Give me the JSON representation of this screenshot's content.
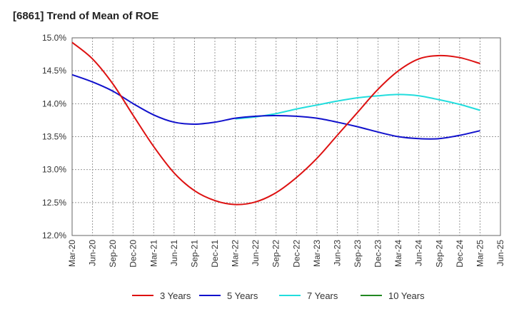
{
  "chart_data": {
    "type": "line",
    "title": "[6861]  Trend of Mean of ROE",
    "xlabel": "",
    "ylabel": "",
    "x_ticks": [
      "Mar-20",
      "Jun-20",
      "Sep-20",
      "Dec-20",
      "Mar-21",
      "Jun-21",
      "Sep-21",
      "Dec-21",
      "Mar-22",
      "Jun-22",
      "Sep-22",
      "Dec-22",
      "Mar-23",
      "Jun-23",
      "Sep-23",
      "Dec-23",
      "Mar-24",
      "Jun-24",
      "Sep-24",
      "Dec-24",
      "Mar-25",
      "Jun-25"
    ],
    "y_ticks": [
      "12.0%",
      "12.5%",
      "13.0%",
      "13.5%",
      "14.0%",
      "14.5%",
      "15.0%"
    ],
    "ylim": [
      12.0,
      15.0
    ],
    "grid": true,
    "legend_position": "bottom",
    "series": [
      {
        "name": "3 Years",
        "color": "#dd1111",
        "x": [
          "Mar-20",
          "Jun-20",
          "Sep-20",
          "Dec-20",
          "Mar-21",
          "Jun-21",
          "Sep-21",
          "Dec-21",
          "Mar-22",
          "Jun-22",
          "Sep-22",
          "Dec-22",
          "Mar-23",
          "Jun-23",
          "Sep-23",
          "Dec-23",
          "Mar-24",
          "Jun-24",
          "Sep-24",
          "Dec-24",
          "Mar-25"
        ],
        "values": [
          14.93,
          14.68,
          14.3,
          13.82,
          13.35,
          12.95,
          12.68,
          12.53,
          12.47,
          12.51,
          12.65,
          12.88,
          13.17,
          13.52,
          13.87,
          14.22,
          14.5,
          14.68,
          14.73,
          14.7,
          14.61
        ]
      },
      {
        "name": "5 Years",
        "color": "#1111cc",
        "x": [
          "Mar-20",
          "Jun-20",
          "Sep-20",
          "Dec-20",
          "Mar-21",
          "Jun-21",
          "Sep-21",
          "Dec-21",
          "Mar-22",
          "Jun-22",
          "Sep-22",
          "Dec-22",
          "Mar-23",
          "Jun-23",
          "Sep-23",
          "Dec-23",
          "Mar-24",
          "Jun-24",
          "Sep-24",
          "Dec-24",
          "Mar-25"
        ],
        "values": [
          14.44,
          14.33,
          14.19,
          14.0,
          13.83,
          13.72,
          13.69,
          13.72,
          13.78,
          13.81,
          13.82,
          13.81,
          13.78,
          13.72,
          13.65,
          13.57,
          13.5,
          13.47,
          13.47,
          13.52,
          13.59
        ]
      },
      {
        "name": "7 Years",
        "color": "#22dddd",
        "x": [
          "Mar-22",
          "Jun-22",
          "Sep-22",
          "Dec-22",
          "Mar-23",
          "Jun-23",
          "Sep-23",
          "Dec-23",
          "Mar-24",
          "Jun-24",
          "Sep-24",
          "Dec-24",
          "Mar-25"
        ],
        "values": [
          13.77,
          13.8,
          13.85,
          13.92,
          13.98,
          14.04,
          14.09,
          14.12,
          14.14,
          14.12,
          14.06,
          13.99,
          13.9
        ]
      },
      {
        "name": "10 Years",
        "color": "#228822",
        "x": [],
        "values": []
      }
    ]
  }
}
